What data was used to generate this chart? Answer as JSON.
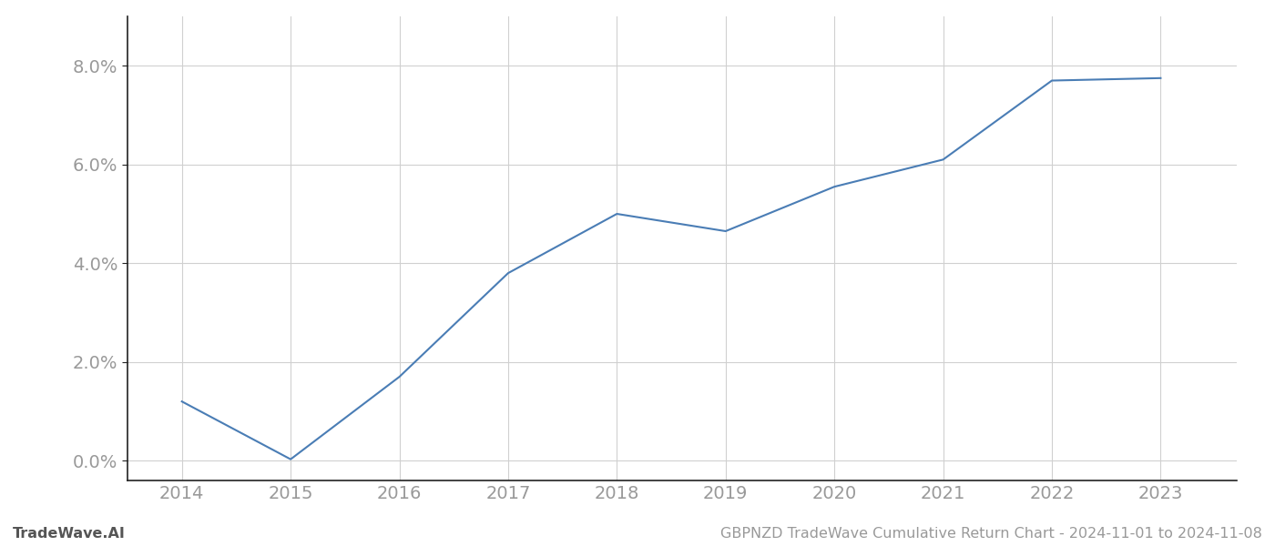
{
  "x_values": [
    2014,
    2015,
    2016,
    2017,
    2018,
    2019,
    2020,
    2021,
    2022,
    2023
  ],
  "y_values": [
    1.2,
    0.03,
    1.7,
    3.8,
    5.0,
    4.65,
    5.55,
    6.1,
    7.7,
    7.75
  ],
  "line_color": "#4a7db5",
  "line_width": 1.5,
  "background_color": "#ffffff",
  "grid_color": "#d0d0d0",
  "footer_left": "TradeWave.AI",
  "footer_right": "GBPNZD TradeWave Cumulative Return Chart - 2024-11-01 to 2024-11-08",
  "xlim_min": 2013.5,
  "xlim_max": 2023.7,
  "ylim_min": -0.4,
  "ylim_max": 9.0,
  "yticks": [
    0.0,
    2.0,
    4.0,
    6.0,
    8.0
  ],
  "xticks": [
    2014,
    2015,
    2016,
    2017,
    2018,
    2019,
    2020,
    2021,
    2022,
    2023
  ],
  "tick_color": "#aaaaaa",
  "label_color": "#999999",
  "tick_fontsize": 14,
  "footer_fontsize": 11.5,
  "spine_color": "#222222"
}
